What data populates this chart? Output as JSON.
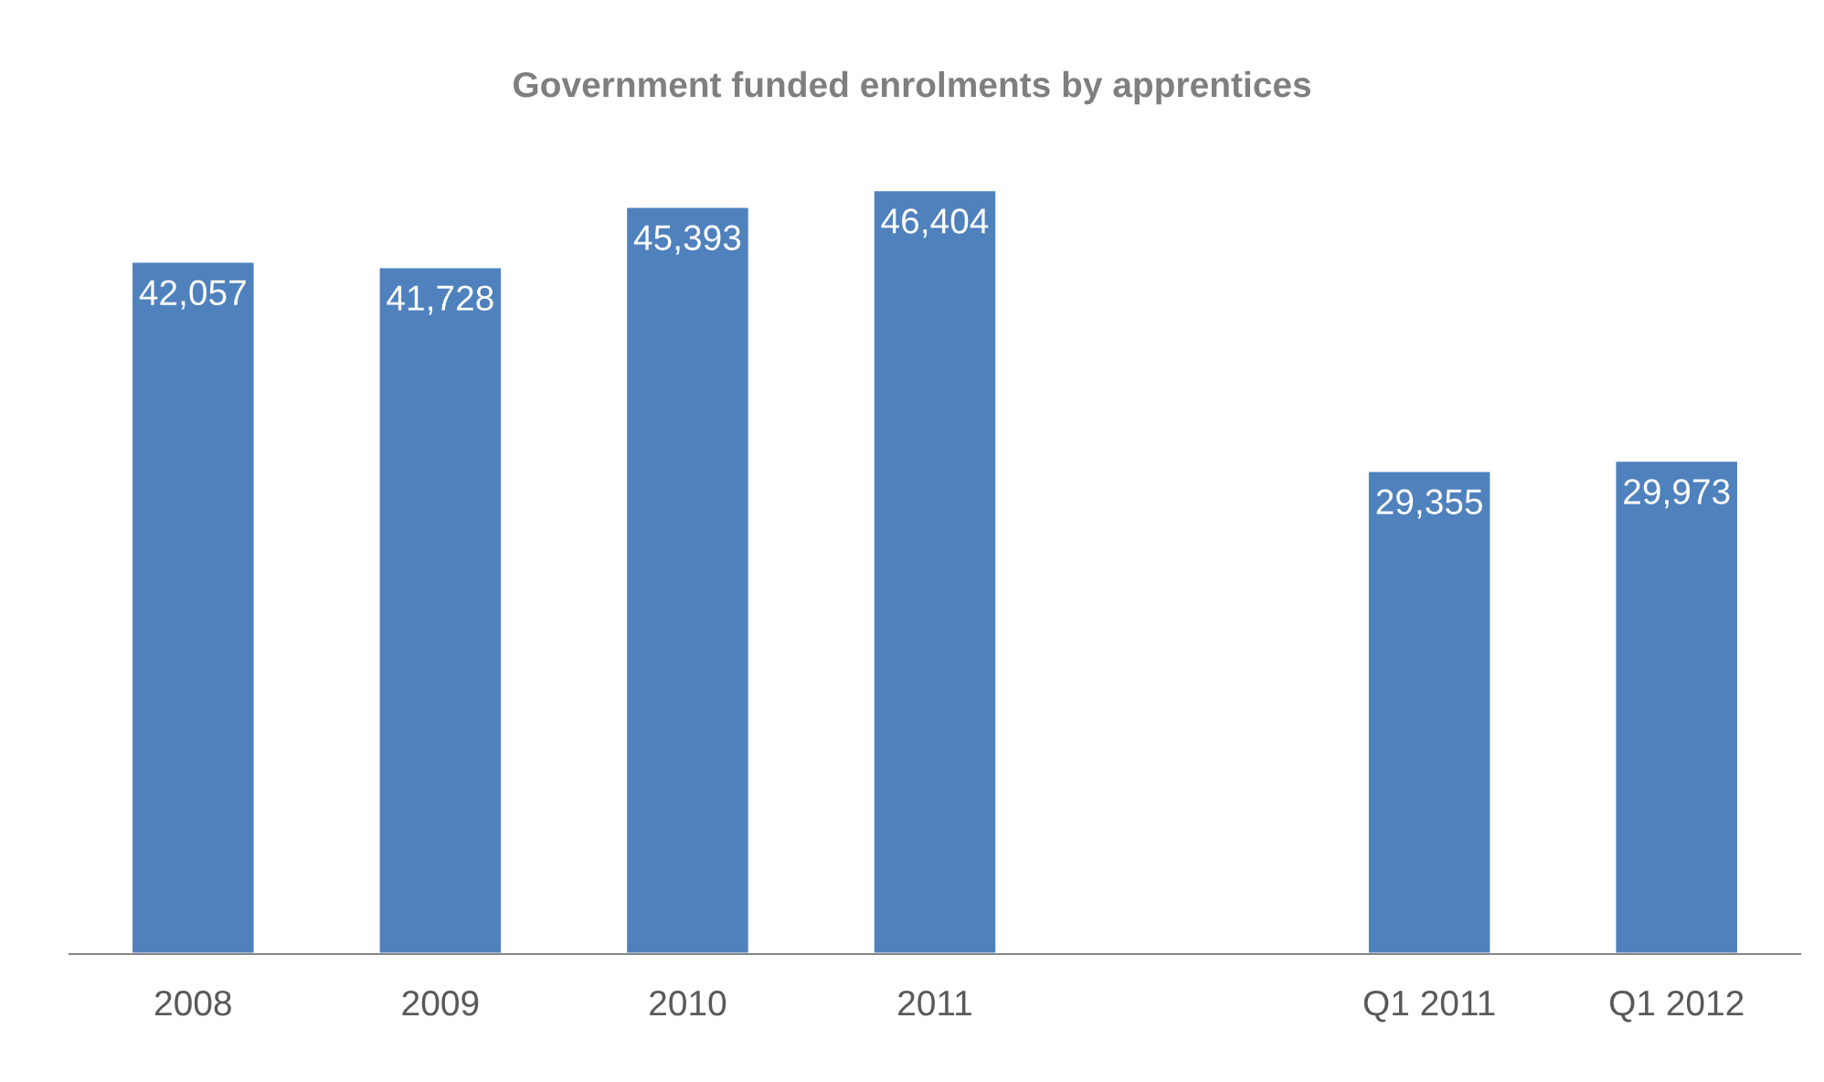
{
  "chart_data": {
    "type": "bar",
    "title": "Government funded enrolments by apprentices",
    "categories": [
      "2008",
      "2009",
      "2010",
      "2011",
      null,
      "Q1 2011",
      "Q1 2012"
    ],
    "values": [
      42057,
      41728,
      45393,
      46404,
      null,
      29355,
      29973
    ],
    "value_labels": [
      "42,057",
      "41,728",
      "45,393",
      "46,404",
      null,
      "29,355",
      "29,973"
    ],
    "color": "#4f81bd",
    "grid": false,
    "legend": false
  }
}
